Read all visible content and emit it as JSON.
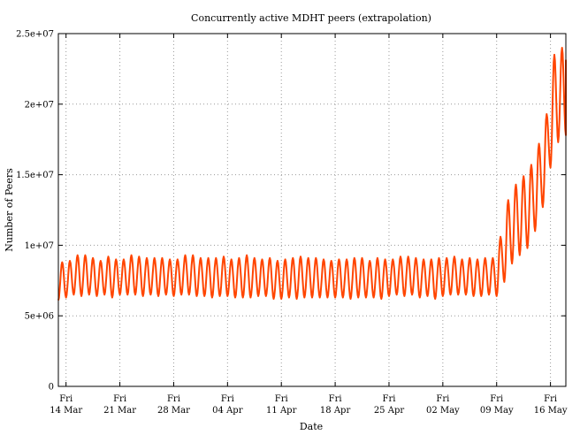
{
  "chart_data": {
    "type": "line",
    "title": "Concurrently active MDHT peers (extrapolation)",
    "xlabel": "Date",
    "ylabel": "Number of Peers",
    "ylim": [
      0,
      25000000
    ],
    "yticks": [
      {
        "value": 0,
        "label": "0"
      },
      {
        "value": 5000000,
        "label": "5e+06"
      },
      {
        "value": 10000000,
        "label": "1e+07"
      },
      {
        "value": 15000000,
        "label": "1.5e+07"
      },
      {
        "value": 20000000,
        "label": "2e+07"
      },
      {
        "value": 25000000,
        "label": "2.5e+07"
      }
    ],
    "xlim": [
      "2014-03-13",
      "2014-05-18"
    ],
    "xticks": [
      {
        "date": "2014-03-14",
        "day": "Fri",
        "label": "14 Mar"
      },
      {
        "date": "2014-03-21",
        "day": "Fri",
        "label": "21 Mar"
      },
      {
        "date": "2014-03-28",
        "day": "Fri",
        "label": "28 Mar"
      },
      {
        "date": "2014-04-04",
        "day": "Fri",
        "label": "04 Apr"
      },
      {
        "date": "2014-04-11",
        "day": "Fri",
        "label": "11 Apr"
      },
      {
        "date": "2014-04-18",
        "day": "Fri",
        "label": "18 Apr"
      },
      {
        "date": "2014-04-25",
        "day": "Fri",
        "label": "25 Apr"
      },
      {
        "date": "2014-05-02",
        "day": "Fri",
        "label": "02 May"
      },
      {
        "date": "2014-05-09",
        "day": "Fri",
        "label": "09 May"
      },
      {
        "date": "2014-05-16",
        "day": "Fri",
        "label": "16 May"
      }
    ],
    "grid": true,
    "series_color": "#ff4500",
    "series": [
      {
        "x": [
          "2014-03-13",
          "2014-03-14",
          "2014-03-15",
          "2014-03-16",
          "2014-03-17",
          "2014-03-18",
          "2014-03-19",
          "2014-03-20",
          "2014-03-21",
          "2014-03-22",
          "2014-03-23",
          "2014-03-24",
          "2014-03-25",
          "2014-03-26",
          "2014-03-27",
          "2014-03-28",
          "2014-03-29",
          "2014-03-30",
          "2014-03-31",
          "2014-04-01",
          "2014-04-02",
          "2014-04-03",
          "2014-04-04",
          "2014-04-05",
          "2014-04-06",
          "2014-04-07",
          "2014-04-08",
          "2014-04-09",
          "2014-04-10",
          "2014-04-11",
          "2014-04-12",
          "2014-04-13",
          "2014-04-14",
          "2014-04-15",
          "2014-04-16",
          "2014-04-17",
          "2014-04-18",
          "2014-04-19",
          "2014-04-20",
          "2014-04-21",
          "2014-04-22",
          "2014-04-23",
          "2014-04-24",
          "2014-04-25",
          "2014-04-26",
          "2014-04-27",
          "2014-04-28",
          "2014-04-29",
          "2014-04-30",
          "2014-05-01",
          "2014-05-02",
          "2014-05-03",
          "2014-05-04",
          "2014-05-05",
          "2014-05-06",
          "2014-05-07",
          "2014-05-08",
          "2014-05-09",
          "2014-05-10",
          "2014-05-11",
          "2014-05-12",
          "2014-05-13",
          "2014-05-14",
          "2014-05-15",
          "2014-05-16",
          "2014-05-17",
          "2014-05-18"
        ],
        "daily_min": [
          6100000,
          6300000,
          6500000,
          6400000,
          6500000,
          6400000,
          6500000,
          6300000,
          6500000,
          6500000,
          6500000,
          6400000,
          6500000,
          6400000,
          6500000,
          6400000,
          6500000,
          6500000,
          6400000,
          6400000,
          6300000,
          6400000,
          6400000,
          6300000,
          6300000,
          6300000,
          6400000,
          6400000,
          6200000,
          6200000,
          6300000,
          6200000,
          6300000,
          6300000,
          6300000,
          6300000,
          6300000,
          6300000,
          6200000,
          6300000,
          6300000,
          6300000,
          6200000,
          6400000,
          6500000,
          6400000,
          6500000,
          6300000,
          6400000,
          6200000,
          6400000,
          6500000,
          6500000,
          6500000,
          6400000,
          6400000,
          6500000,
          6400000,
          7400000,
          8700000,
          9300000,
          9800000,
          11000000,
          12700000,
          15500000,
          17300000,
          17800000
        ],
        "daily_max": [
          8800000,
          8900000,
          9300000,
          9300000,
          9100000,
          8900000,
          9200000,
          9000000,
          9000000,
          9300000,
          9200000,
          9100000,
          9100000,
          9100000,
          9000000,
          9000000,
          9300000,
          9300000,
          9100000,
          9100000,
          9100000,
          9200000,
          9000000,
          9100000,
          9300000,
          9100000,
          9000000,
          9100000,
          8900000,
          9000000,
          9100000,
          9200000,
          9100000,
          9100000,
          9000000,
          8900000,
          9000000,
          9000000,
          9100000,
          9100000,
          8900000,
          9100000,
          9000000,
          9000000,
          9200000,
          9200000,
          9100000,
          9000000,
          9000000,
          9100000,
          9100000,
          9200000,
          9000000,
          9100000,
          9000000,
          9100000,
          9100000,
          10600000,
          13200000,
          14300000,
          14900000,
          15700000,
          17200000,
          19300000,
          23500000,
          24000000,
          23100000
        ]
      }
    ]
  }
}
